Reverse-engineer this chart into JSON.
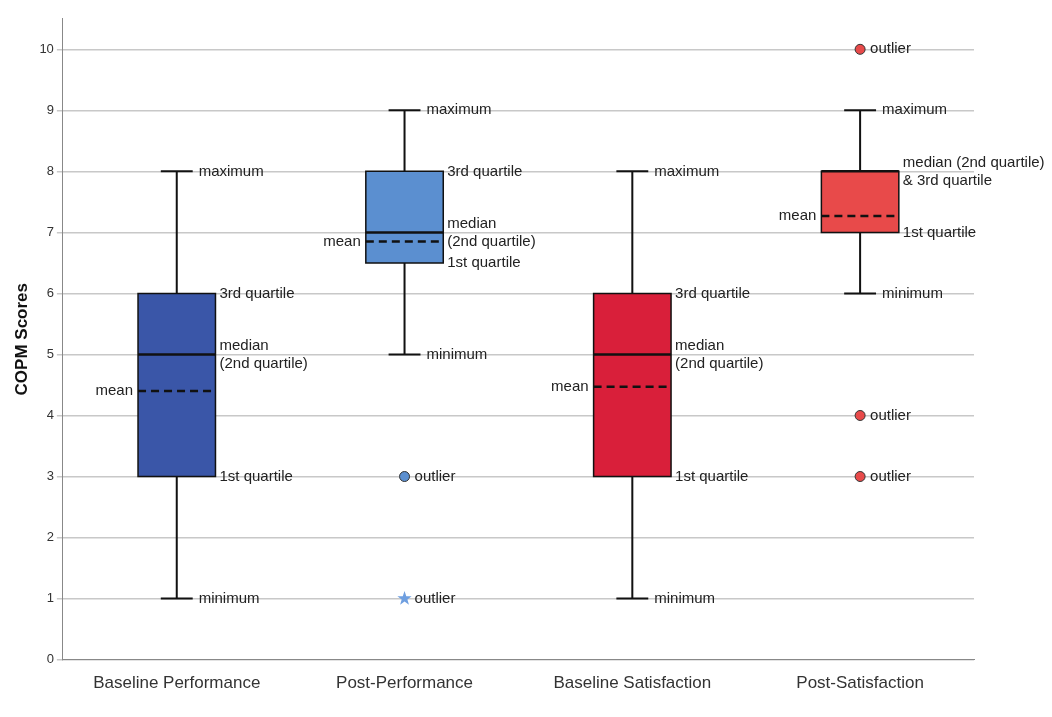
{
  "chart_data": {
    "type": "box",
    "ylabel": "COPM Scores",
    "categories": [
      "Baseline Performance",
      "Post-Performance",
      "Baseline Satisfaction",
      "Post-Satisfaction"
    ],
    "series": [
      {
        "type": "box",
        "colors": [
          "#3a56a8",
          "#5b8fd0",
          "#d91f3a",
          "#e84a4a"
        ],
        "boxes": [
          {
            "low": 1,
            "q1": 3,
            "median": 5,
            "q3": 6,
            "high": 8,
            "mean": 4.4
          },
          {
            "low": 5,
            "q1": 6.5,
            "median": 7,
            "q3": 8,
            "high": 9,
            "mean": 6.85
          },
          {
            "low": 1,
            "q1": 3,
            "median": 5,
            "q3": 6,
            "high": 8,
            "mean": 4.47
          },
          {
            "low": 6,
            "q1": 7,
            "median": 8,
            "q3": 8,
            "high": 9,
            "mean": 7.27
          }
        ]
      },
      {
        "type": "scatter",
        "x": [
          "Post-Performance"
        ],
        "values": [
          3
        ],
        "marker": "circle",
        "color": "#5b8fd0"
      },
      {
        "type": "scatter",
        "x": [
          "Post-Satisfaction",
          "Post-Satisfaction",
          "Post-Satisfaction"
        ],
        "values": [
          10,
          4,
          3
        ],
        "marker": "circle",
        "color": "#e84a4a"
      },
      {
        "type": "scatter",
        "x": [
          "Post-Performance"
        ],
        "values": [
          1
        ],
        "marker": "star",
        "color": "#6f9fe0"
      }
    ],
    "ylim": [
      0,
      10.5
    ],
    "yticks": [
      0,
      1,
      2,
      3,
      4,
      5,
      6,
      7,
      8,
      9,
      10
    ],
    "grid": "y",
    "legend": false,
    "annotations": [
      {
        "text": "maximum",
        "x": "Baseline Performance",
        "y": 8
      },
      {
        "text": "3rd quartile",
        "x": "Baseline Performance",
        "y": 6
      },
      {
        "text": "median\n(2nd quartile)",
        "x": "Baseline Performance",
        "y": 5
      },
      {
        "text": "mean",
        "x": "Baseline Performance",
        "y": 4.4
      },
      {
        "text": "1st quartile",
        "x": "Baseline Performance",
        "y": 3
      },
      {
        "text": "minimum",
        "x": "Baseline Performance",
        "y": 1
      },
      {
        "text": "maximum",
        "x": "Post-Performance",
        "y": 9
      },
      {
        "text": "3rd quartile",
        "x": "Post-Performance",
        "y": 8
      },
      {
        "text": "median\n(2nd quartile)",
        "x": "Post-Performance",
        "y": 7
      },
      {
        "text": "mean",
        "x": "Post-Performance",
        "y": 6.85
      },
      {
        "text": "1st quartile",
        "x": "Post-Performance",
        "y": 6.5
      },
      {
        "text": "minimum",
        "x": "Post-Performance",
        "y": 5
      },
      {
        "text": "outlier",
        "x": "Post-Performance",
        "y": 3
      },
      {
        "text": "outlier",
        "x": "Post-Performance",
        "y": 1
      },
      {
        "text": "maximum",
        "x": "Baseline Satisfaction",
        "y": 8
      },
      {
        "text": "3rd quartile",
        "x": "Baseline Satisfaction",
        "y": 6
      },
      {
        "text": "median\n(2nd quartile)",
        "x": "Baseline Satisfaction",
        "y": 5
      },
      {
        "text": "mean",
        "x": "Baseline Satisfaction",
        "y": 4.47
      },
      {
        "text": "1st quartile",
        "x": "Baseline Satisfaction",
        "y": 3
      },
      {
        "text": "minimum",
        "x": "Baseline Satisfaction",
        "y": 1
      },
      {
        "text": "outlier",
        "x": "Post-Satisfaction",
        "y": 10
      },
      {
        "text": "maximum",
        "x": "Post-Satisfaction",
        "y": 9
      },
      {
        "text": "median (2nd quartile)\n& 3rd quartile",
        "x": "Post-Satisfaction",
        "y": 8
      },
      {
        "text": "mean",
        "x": "Post-Satisfaction",
        "y": 7.27
      },
      {
        "text": "1st quartile",
        "x": "Post-Satisfaction",
        "y": 7
      },
      {
        "text": "minimum",
        "x": "Post-Satisfaction",
        "y": 6
      },
      {
        "text": "outlier",
        "x": "Post-Satisfaction",
        "y": 4
      },
      {
        "text": "outlier",
        "x": "Post-Satisfaction",
        "y": 3
      }
    ]
  }
}
